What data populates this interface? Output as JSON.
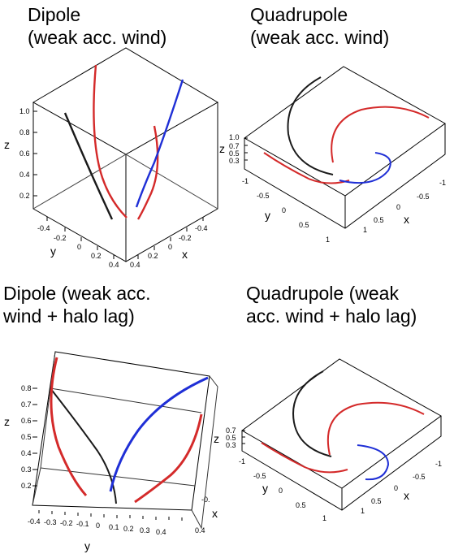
{
  "panels": [
    {
      "title": "Dipole\n(weak acc. wind)",
      "axis_labels": {
        "x": "x",
        "y": "y",
        "z": "z"
      },
      "z_ticks": [
        "1.0",
        "0.8",
        "0.6",
        "0.4",
        "0.2"
      ],
      "y_ticks": [
        "-0.4",
        "-0.2",
        "0",
        "0.2",
        "0.4"
      ],
      "x_ticks": [
        "0.4",
        "0.2",
        "0",
        "-0.2",
        "-0.4"
      ]
    },
    {
      "title": "Quadrupole\n(weak acc. wind)",
      "axis_labels": {
        "x": "x",
        "y": "y",
        "z": "z"
      },
      "z_ticks": [
        "1.0",
        "0.7",
        "0.5",
        "0.3"
      ],
      "y_ticks": [
        "-1",
        "-0.5",
        "0",
        "0.5",
        "1"
      ],
      "x_ticks": [
        "1",
        "0.5",
        "0",
        "-0.5",
        "-1"
      ]
    },
    {
      "title": "Dipole (weak acc.\nwind + halo lag)",
      "axis_labels": {
        "x": "x",
        "y": "y",
        "z": "z"
      },
      "z_ticks": [
        "0.8",
        "0.7",
        "0.6",
        "0.5",
        "0.4",
        "0.3",
        "0.2"
      ],
      "y_ticks": [
        "-0.4",
        "-0.3",
        "-0.2",
        "-0.1",
        "0",
        "0.1",
        "0.2",
        "0.3",
        "0.4"
      ],
      "x_ticks": [
        "-0.",
        "0.4"
      ]
    },
    {
      "title": "Quadrupole (weak\nacc. wind + halo lag)",
      "axis_labels": {
        "x": "x",
        "y": "y",
        "z": "z"
      },
      "z_ticks": [
        "0.7",
        "0.5",
        "0.3"
      ],
      "y_ticks": [
        "-1",
        "-0.5",
        "0",
        "0.5",
        "1"
      ],
      "x_ticks": [
        "1",
        "0.5",
        "0",
        "-0.5",
        "-1"
      ]
    }
  ],
  "colors": {
    "black": "#1a1a1a",
    "red": "#d42a2a",
    "blue": "#1f2fd6",
    "box": "#000000"
  }
}
